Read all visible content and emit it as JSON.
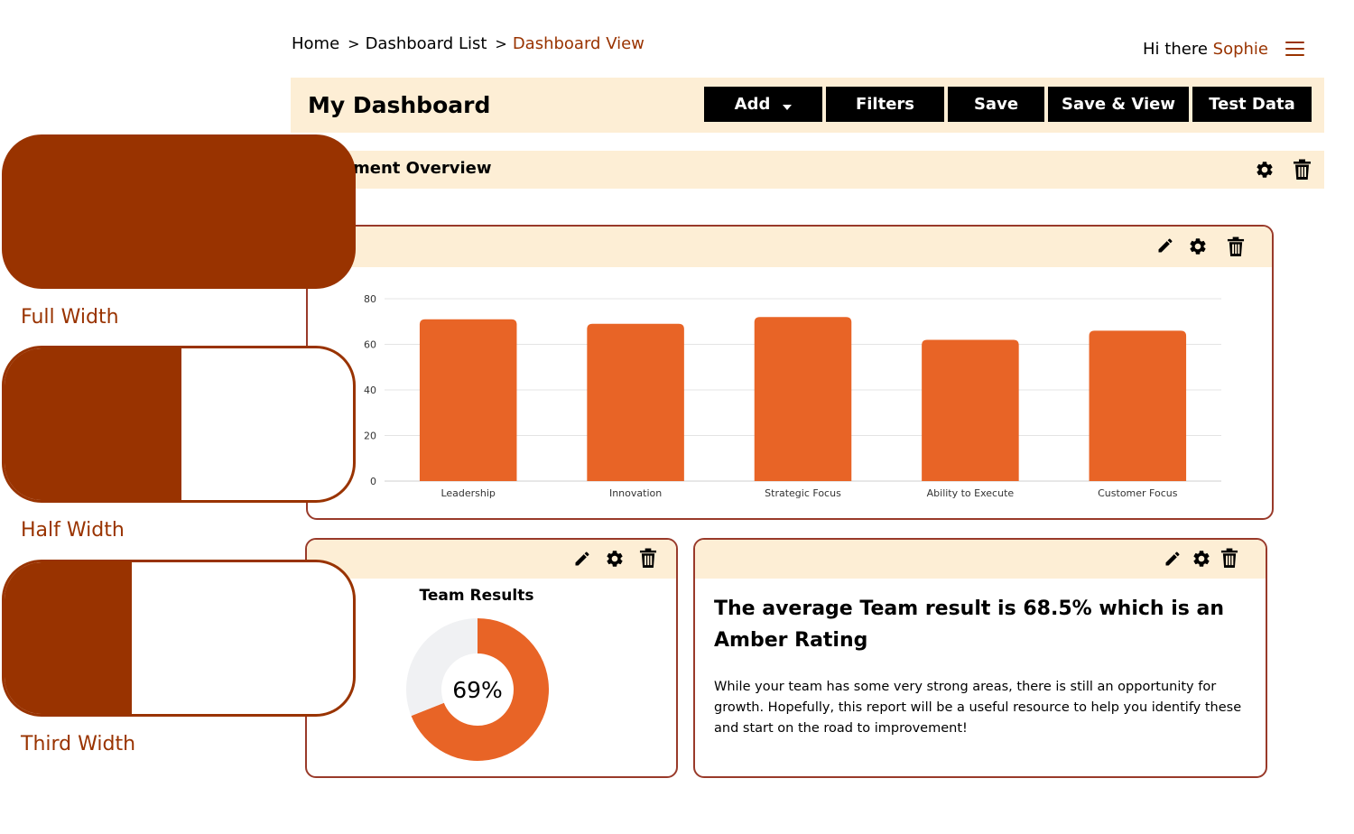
{
  "breadcrumb": {
    "items": [
      "Home",
      "Dashboard List",
      "Dashboard View"
    ],
    "separator": ">"
  },
  "header": {
    "greeting": "Hi there",
    "user_name": "Sophie",
    "menu_icon": "hamburger-menu-icon"
  },
  "toolbar": {
    "title": "My Dashboard",
    "buttons": {
      "add": "Add",
      "filters": "Filters",
      "save": "Save",
      "save_view": "Save & View",
      "test_data": "Test Data"
    }
  },
  "section": {
    "title": "Assessment Overview"
  },
  "chart_widget": {
    "icons": [
      "pencil-icon",
      "gear-icon",
      "trash-icon"
    ]
  },
  "chart_data": [
    {
      "type": "bar",
      "title": "",
      "xlabel": "",
      "ylabel": "",
      "categories": [
        "Leadership",
        "Innovation",
        "Strategic Focus",
        "Ability to Execute",
        "Customer Focus"
      ],
      "values": [
        71,
        69,
        72,
        62,
        66
      ],
      "ylim": [
        0,
        80
      ],
      "yticks": [
        0,
        20,
        40,
        60,
        80
      ],
      "grid": true,
      "color": "#e86426"
    },
    {
      "type": "pie",
      "title": "Team Results",
      "categories": [
        "Team result",
        "Remaining"
      ],
      "values": [
        69,
        31
      ],
      "center_label": "69%",
      "colors": [
        "#e86426",
        "#f0f1f3"
      ]
    }
  ],
  "text_widget": {
    "heading": "The average Team result is 68.5% which is an Amber Rating",
    "body": "While your team has some very strong areas, there is still an opportunity for growth. Hopefully, this report will be a useful resource to help you identify these and start on the road to improvement!"
  },
  "layout_options": {
    "full": "Full Width",
    "half": "Half Width",
    "third": "Third Width"
  },
  "colors": {
    "accent": "#993300",
    "bar": "#e86426",
    "header_bg": "#fdeed5",
    "button_bg": "#000000"
  }
}
